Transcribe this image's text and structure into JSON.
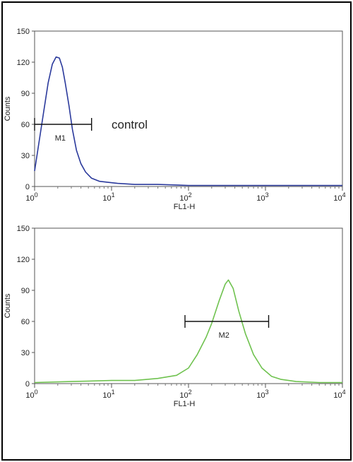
{
  "chart_data": [
    {
      "type": "line",
      "xlabel": "FL1-H",
      "ylabel": "Counts",
      "xscale": "log",
      "xlim": [
        1,
        10000
      ],
      "ylim": [
        0,
        150
      ],
      "x_ticks": [
        "0",
        "1",
        "2",
        "3",
        "4"
      ],
      "y_ticks": [
        "0",
        "30",
        "60",
        "90",
        "120",
        "150"
      ],
      "series": [
        {
          "color": "#2b3a9c",
          "x": [
            1.0,
            1.1,
            1.3,
            1.5,
            1.7,
            1.9,
            2.1,
            2.3,
            2.5,
            2.8,
            3.1,
            3.5,
            4.0,
            4.6,
            5.5,
            7,
            9,
            12,
            20,
            40,
            100,
            300,
            1000,
            10000
          ],
          "y": [
            15,
            35,
            70,
            100,
            118,
            125,
            124,
            115,
            100,
            78,
            55,
            35,
            22,
            14,
            8,
            5,
            4,
            3,
            2,
            2,
            1,
            1,
            1,
            1
          ]
        }
      ],
      "markers": [
        {
          "label": "M1",
          "x_start": 1.0,
          "x_end": 5.5,
          "y": 60
        }
      ],
      "annotation": "control"
    },
    {
      "type": "line",
      "xlabel": "FL1-H",
      "ylabel": "Counts",
      "xscale": "log",
      "xlim": [
        1,
        10000
      ],
      "ylim": [
        0,
        150
      ],
      "x_ticks": [
        "0",
        "1",
        "2",
        "3",
        "4"
      ],
      "y_ticks": [
        "0",
        "30",
        "60",
        "90",
        "120",
        "150"
      ],
      "series": [
        {
          "color": "#6fc24f",
          "x": [
            1,
            3,
            10,
            20,
            40,
            70,
            100,
            130,
            170,
            200,
            250,
            300,
            330,
            380,
            450,
            550,
            700,
            900,
            1200,
            1600,
            2500,
            5000,
            10000
          ],
          "y": [
            1,
            2,
            3,
            3,
            5,
            8,
            15,
            28,
            45,
            58,
            80,
            96,
            100,
            92,
            70,
            48,
            28,
            15,
            7,
            4,
            2,
            1,
            1
          ]
        }
      ],
      "markers": [
        {
          "label": "M2",
          "x_start": 90,
          "x_end": 1100,
          "y": 60
        }
      ]
    }
  ]
}
